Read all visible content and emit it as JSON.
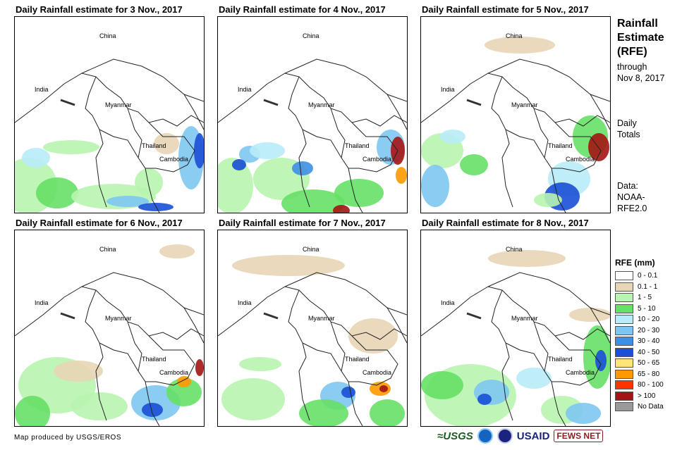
{
  "panels": [
    {
      "title": "Daily Rainfall estimate for 3 Nov., 2017",
      "labels": {
        "china": "China",
        "india": "India",
        "myanmar": "Myanmar",
        "thailand": "Thailand",
        "cambodia": "Cambodia"
      }
    },
    {
      "title": "Daily Rainfall estimate for 4 Nov., 2017",
      "labels": {
        "china": "China",
        "india": "India",
        "myanmar": "Myanmar",
        "thailand": "Thailand",
        "cambodia": "Cambodia"
      }
    },
    {
      "title": "Daily Rainfall estimate for 5 Nov., 2017",
      "labels": {
        "china": "China",
        "india": "India",
        "myanmar": "Myanmar",
        "thailand": "Thailand",
        "cambodia": "Cambodia"
      }
    },
    {
      "title": "Daily Rainfall estimate for 6 Nov., 2017",
      "labels": {
        "china": "China",
        "india": "India",
        "myanmar": "Myanmar",
        "thailand": "Thailand",
        "cambodia": "Cambodia"
      }
    },
    {
      "title": "Daily Rainfall estimate for 7 Nov., 2017",
      "labels": {
        "china": "China",
        "india": "India",
        "myanmar": "Myanmar",
        "thailand": "Thailand",
        "cambodia": "Cambodia"
      }
    },
    {
      "title": "Daily Rainfall estimate for 8 Nov., 2017",
      "labels": {
        "china": "China",
        "india": "India",
        "myanmar": "Myanmar",
        "thailand": "Thailand",
        "cambodia": "Cambodia"
      }
    }
  ],
  "sidebar": {
    "title_line1": "Rainfall",
    "title_line2": "Estimate",
    "title_line3": "(RFE)",
    "through": "through",
    "date": "Nov 8, 2017",
    "daily1": "Daily",
    "daily2": "Totals",
    "data1": "Data:",
    "data2": "NOAA-",
    "data3": "RFE2.0"
  },
  "legend": {
    "title": "RFE (mm)",
    "items": [
      {
        "label": "0 - 0.1",
        "color": "#ffffff"
      },
      {
        "label": "0.1 - 1",
        "color": "#e8d5b5"
      },
      {
        "label": "1 - 5",
        "color": "#b8f5b0"
      },
      {
        "label": "5 - 10",
        "color": "#66e066"
      },
      {
        "label": "10 - 20",
        "color": "#b8ecf8"
      },
      {
        "label": "20 - 30",
        "color": "#7ec6f2"
      },
      {
        "label": "30 - 40",
        "color": "#3d8fe6"
      },
      {
        "label": "40 - 50",
        "color": "#1a4fd6"
      },
      {
        "label": "50 - 65",
        "color": "#ffe47a"
      },
      {
        "label": "65 - 80",
        "color": "#ff9900"
      },
      {
        "label": "80 - 100",
        "color": "#ff3300"
      },
      {
        "label": "> 100",
        "color": "#a31515"
      },
      {
        "label": "No Data",
        "color": "#999999"
      }
    ]
  },
  "footer": {
    "credit": "Map produced by USGS/EROS",
    "logo_usgs": "≈USGS",
    "logo_usaid": "USAID",
    "logo_fews": "FEWS NET"
  }
}
